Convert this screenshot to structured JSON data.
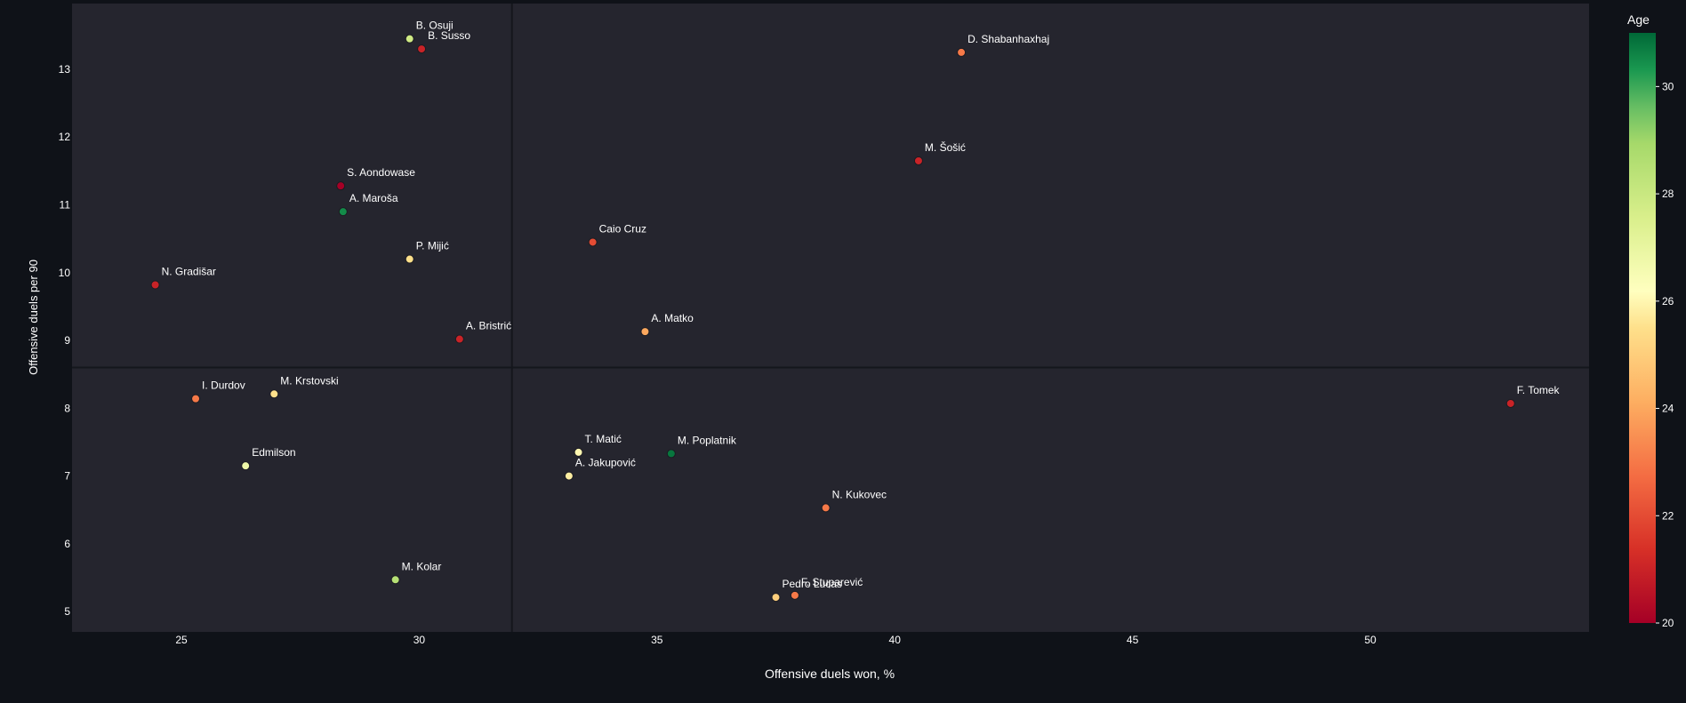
{
  "chart_data": {
    "type": "scatter",
    "title": "",
    "xlabel": "Offensive duels won, %",
    "ylabel": "Offensive duels per 90",
    "xlim": [
      22.7,
      54.6
    ],
    "ylim": [
      4.7,
      13.97
    ],
    "xticks": [
      25,
      30,
      35,
      40,
      45,
      50
    ],
    "yticks": [
      5,
      6,
      7,
      8,
      9,
      10,
      11,
      12,
      13
    ],
    "reference_lines": {
      "x": 31.95,
      "y": 8.6
    },
    "colorbar": {
      "title": "Age",
      "min": 20,
      "max": 31,
      "ticks": [
        20,
        22,
        24,
        26,
        28,
        30
      ]
    },
    "colors": {
      "background": "#0f1218",
      "plot_background": "#25252e",
      "text": "#ffffff",
      "reference_line": "#14161c"
    },
    "points": [
      {
        "name": "B. Osuji",
        "x": 29.8,
        "y": 13.45,
        "age": 27.8
      },
      {
        "name": "B. Susso",
        "x": 30.05,
        "y": 13.3,
        "age": 21
      },
      {
        "name": "D. Shabanhaxhaj",
        "x": 41.4,
        "y": 13.25,
        "age": 23
      },
      {
        "name": "M. Šošić",
        "x": 40.5,
        "y": 11.65,
        "age": 21
      },
      {
        "name": "S. Aondowase",
        "x": 28.35,
        "y": 11.28,
        "age": 20
      },
      {
        "name": "A. Maroša",
        "x": 28.4,
        "y": 10.9,
        "age": 30.5
      },
      {
        "name": "Caio Cruz",
        "x": 33.65,
        "y": 10.45,
        "age": 22
      },
      {
        "name": "P. Mijić",
        "x": 29.8,
        "y": 10.2,
        "age": 25.5
      },
      {
        "name": "N. Gradišar",
        "x": 24.45,
        "y": 9.82,
        "age": 21
      },
      {
        "name": "A. Bristrić",
        "x": 30.85,
        "y": 9.02,
        "age": 21
      },
      {
        "name": "A. Matko",
        "x": 34.75,
        "y": 9.13,
        "age": 24
      },
      {
        "name": "F. Tomek",
        "x": 52.95,
        "y": 8.07,
        "age": 21
      },
      {
        "name": "I. Durdov",
        "x": 25.3,
        "y": 8.14,
        "age": 23
      },
      {
        "name": "M. Krstovski",
        "x": 26.95,
        "y": 8.21,
        "age": 25.5
      },
      {
        "name": "T. Matić",
        "x": 33.35,
        "y": 7.35,
        "age": 26
      },
      {
        "name": "M. Poplatnik",
        "x": 35.3,
        "y": 7.33,
        "age": 30.8
      },
      {
        "name": "A. Jakupović",
        "x": 33.15,
        "y": 7.0,
        "age": 25.8
      },
      {
        "name": "Edmilson",
        "x": 26.35,
        "y": 7.15,
        "age": 26.8
      },
      {
        "name": "N. Kukovec",
        "x": 38.55,
        "y": 6.53,
        "age": 23
      },
      {
        "name": "M. Kolar",
        "x": 29.5,
        "y": 5.47,
        "age": 28.5
      },
      {
        "name": "Pedro Lucas",
        "x": 37.5,
        "y": 5.21,
        "age": 25
      },
      {
        "name": "F. Stuparević",
        "x": 37.9,
        "y": 5.24,
        "age": 23
      }
    ]
  }
}
